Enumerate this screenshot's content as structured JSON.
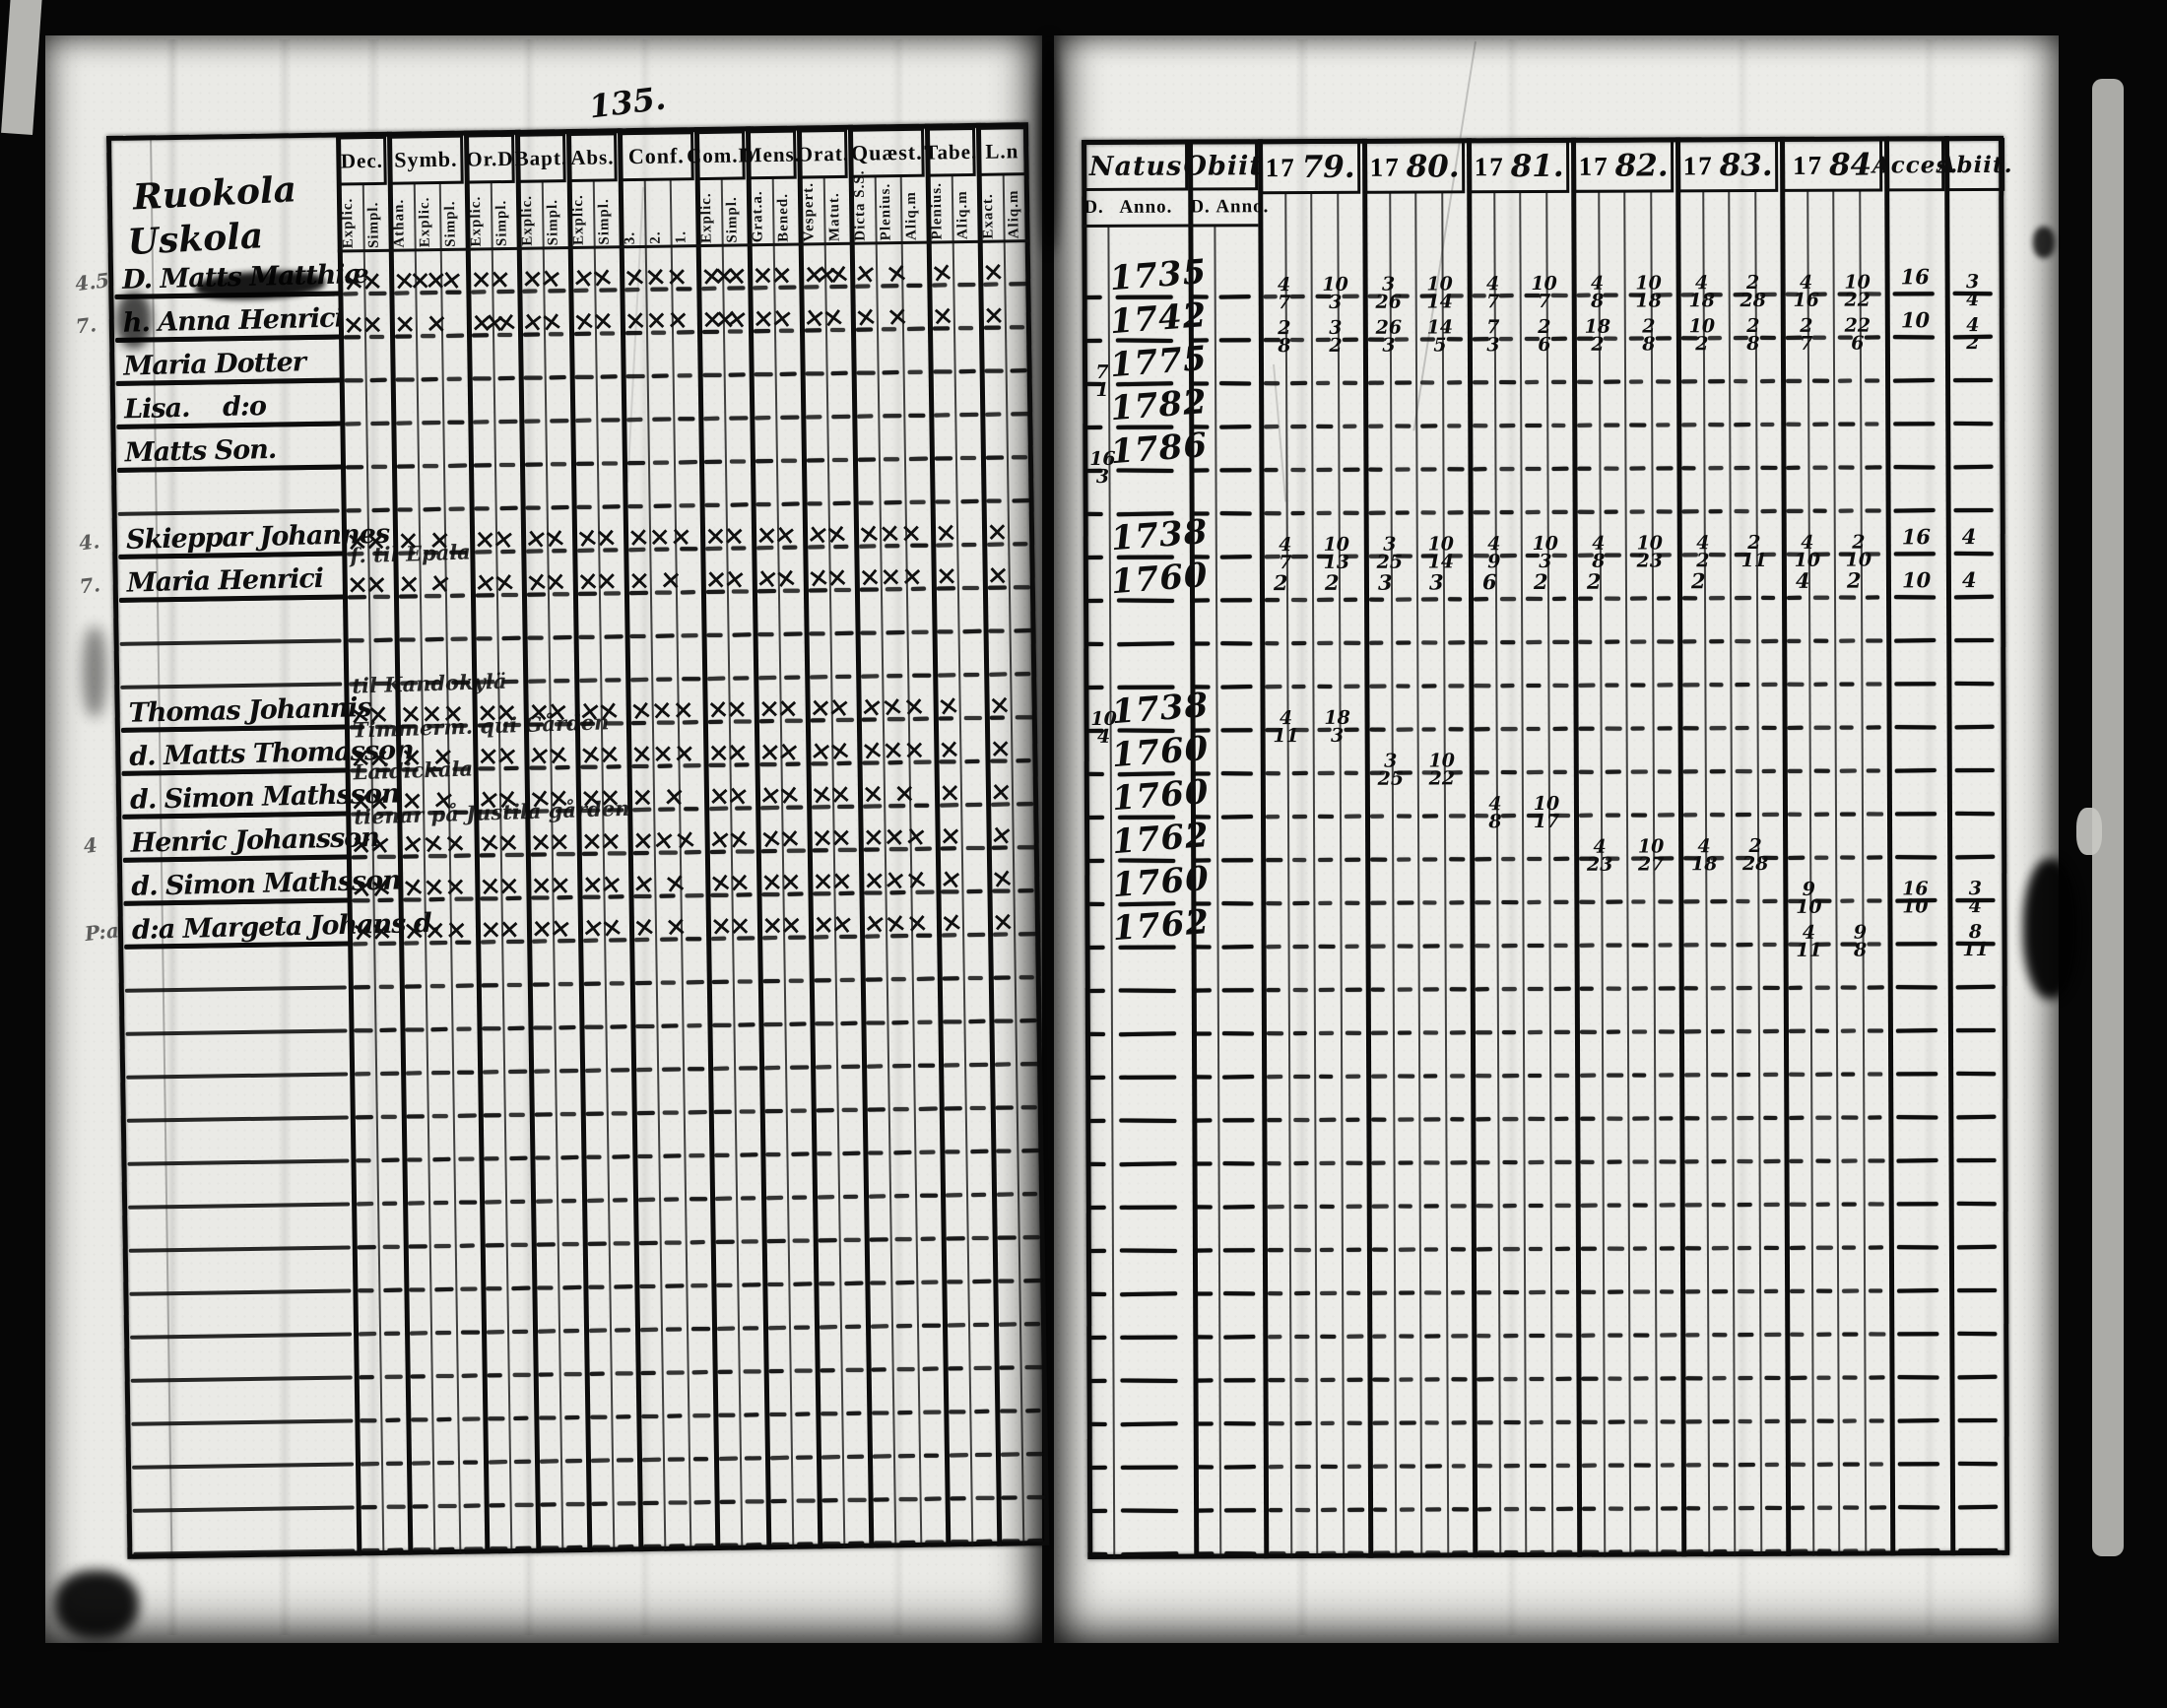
{
  "page_number": "135.",
  "left_page": {
    "village_lines": [
      "Ruokola",
      "Uskola"
    ],
    "columns": [
      {
        "label": "Dec.",
        "subs": [
          "Explic.",
          "Simpl."
        ]
      },
      {
        "label": "Symb.",
        "subs": [
          "Athan.",
          "Explic.",
          "Simpl."
        ]
      },
      {
        "label": "Or.D",
        "subs": [
          "Explic.",
          "Simpl."
        ]
      },
      {
        "label": "Bapt.",
        "subs": [
          "Explic.",
          "Simpl."
        ]
      },
      {
        "label": "Abs.",
        "subs": [
          "Explic.",
          "Simpl."
        ]
      },
      {
        "label": "Conf.",
        "subs": [
          "3.",
          "2.",
          "1."
        ]
      },
      {
        "label": "Com.D",
        "subs": [
          "Explic.",
          "Simpl."
        ]
      },
      {
        "label": "Mens.",
        "subs": [
          "Grat.a.",
          "Bened."
        ]
      },
      {
        "label": "Orat.",
        "subs": [
          "Vespert.",
          "Matut."
        ]
      },
      {
        "label": "Quæst.",
        "subs": [
          "Dicta S.S.",
          "Plenius.",
          "Aliq.m"
        ]
      },
      {
        "label": "Tabe.",
        "subs": [
          "Plenius.",
          "Aliq.m"
        ]
      },
      {
        "label": "L.n",
        "subs": [
          "Exact.",
          "Aliq.m"
        ]
      }
    ]
  },
  "right_page": {
    "natus_label": "Natus",
    "obiit_label": "Obiit",
    "sub_d": "D.",
    "sub_anno": "Anno.",
    "years": [
      {
        "prefix": "17",
        "script": "79."
      },
      {
        "prefix": "17",
        "script": "80."
      },
      {
        "prefix": "17",
        "script": "81."
      },
      {
        "prefix": "17",
        "script": "82."
      },
      {
        "prefix": "17",
        "script": "83."
      },
      {
        "prefix": "17",
        "script": "84"
      }
    ],
    "acces_label": "Acces.",
    "abiit_label": "Abiit."
  },
  "rows": [
    {
      "idx": 0,
      "margin": "4.5",
      "name": "D. Matts Matthiæ",
      "blot": true,
      "natus": "1735",
      "marks": [
        2,
        4,
        2,
        2,
        2,
        3,
        3,
        2,
        3,
        2,
        1,
        1
      ],
      "data": {
        "1779": "4/7 10/3",
        "1780": "3/26 10/14",
        "1781": "4/7 10/7",
        "1782": "4/8 10/18",
        "1783": "4/18 2/28",
        "1784": "4/16 10/22",
        "acces": "16",
        "abiit": "3/4"
      }
    },
    {
      "idx": 1,
      "margin": "7.",
      "name": "h. Anna Henrici",
      "natus": "1742",
      "marks": [
        2,
        2,
        3,
        2,
        2,
        3,
        3,
        2,
        2,
        2,
        1,
        1
      ],
      "data": {
        "1779": "2/8 3/2",
        "1780": "26/3 14/5",
        "1781": "7/3 2/6",
        "1782": "18/2 2/8",
        "1783": "10/2 2/8",
        "1784": "2/7 22/6",
        "acces": "10",
        "abiit": "4/2"
      }
    },
    {
      "idx": 2,
      "name": "Maria Dotter",
      "natus_d": "7/1",
      "natus": "1775"
    },
    {
      "idx": 3,
      "name": "Lisa.    d:o",
      "natus": "1782"
    },
    {
      "idx": 4,
      "name": "Matts Son.",
      "natus_d": "16/3",
      "natus": "1786"
    },
    {
      "idx": 6,
      "margin": "4.",
      "name": "Skieppar Johannes",
      "natus": "1738",
      "marks": [
        2,
        2,
        2,
        2,
        2,
        3,
        2,
        2,
        2,
        3,
        1,
        1
      ],
      "data": {
        "1779": "4/7 10/13",
        "1780": "3/25 10/14",
        "1781": "4/9 10/3",
        "1782": "4/8 10/23",
        "1783": "4/2 2/11",
        "1784": "4/10 2/10",
        "acces": "16",
        "abiit": "4"
      }
    },
    {
      "idx": 7,
      "margin": "7.",
      "name": "Maria Henrici",
      "note": "ſ. til Epala",
      "natus": "1760",
      "marks": [
        2,
        2,
        2,
        2,
        2,
        2,
        2,
        2,
        2,
        3,
        1,
        1
      ],
      "data": {
        "1779": "2 2",
        "1780": "3 3",
        "1781": "6 2",
        "1782": "2",
        "1783": "2",
        "1784": "4 2",
        "acces": "10",
        "abiit": "4"
      }
    },
    {
      "idx": 10,
      "name": "Thomas Johannis",
      "note": "til Kandokylä",
      "natus_d": "10/4",
      "natus": "1738",
      "marks": [
        2,
        3,
        2,
        2,
        2,
        3,
        2,
        2,
        2,
        3,
        1,
        1
      ],
      "data": {
        "1779": "4/11 18/3"
      }
    },
    {
      "idx": 11,
      "name": "d. Matts Thomasson",
      "note": "Timmerm. qui Gården",
      "natus": "1760",
      "marks": [
        2,
        2,
        2,
        2,
        2,
        3,
        2,
        2,
        2,
        3,
        1,
        1
      ],
      "data": {
        "1780": "3/25 10/22"
      }
    },
    {
      "idx": 12,
      "name": "d. Simon Mathsson",
      "note": "Laidickala",
      "natus": "1760",
      "marks": [
        2,
        2,
        2,
        2,
        2,
        2,
        2,
        2,
        2,
        2,
        1,
        1
      ],
      "data": {
        "1781": "4/8 10/17"
      }
    },
    {
      "idx": 13,
      "margin": "4",
      "name": "Henric Johansson",
      "note": "tienar på Justila gården",
      "natus": "1762",
      "marks": [
        2,
        3,
        2,
        2,
        2,
        3,
        2,
        2,
        2,
        3,
        1,
        1
      ],
      "data": {
        "1782": "4/23 10/27",
        "1783": "4/18 2/28"
      }
    },
    {
      "idx": 14,
      "name": "d. Simon Mathsson",
      "natus": "1760",
      "marks": [
        2,
        3,
        2,
        2,
        2,
        2,
        2,
        2,
        2,
        3,
        1,
        1
      ],
      "data": {
        "1784": "9/10",
        "acces": "16/10",
        "abiit": "3/4"
      }
    },
    {
      "idx": 15,
      "margin": "P:a",
      "name": "d:a Margeta Johans d.",
      "natus": "1762",
      "marks": [
        2,
        3,
        2,
        2,
        2,
        2,
        2,
        2,
        2,
        3,
        1,
        1
      ],
      "data": {
        "1784": "4/11 9/8",
        "abiit": "8/11"
      }
    }
  ]
}
